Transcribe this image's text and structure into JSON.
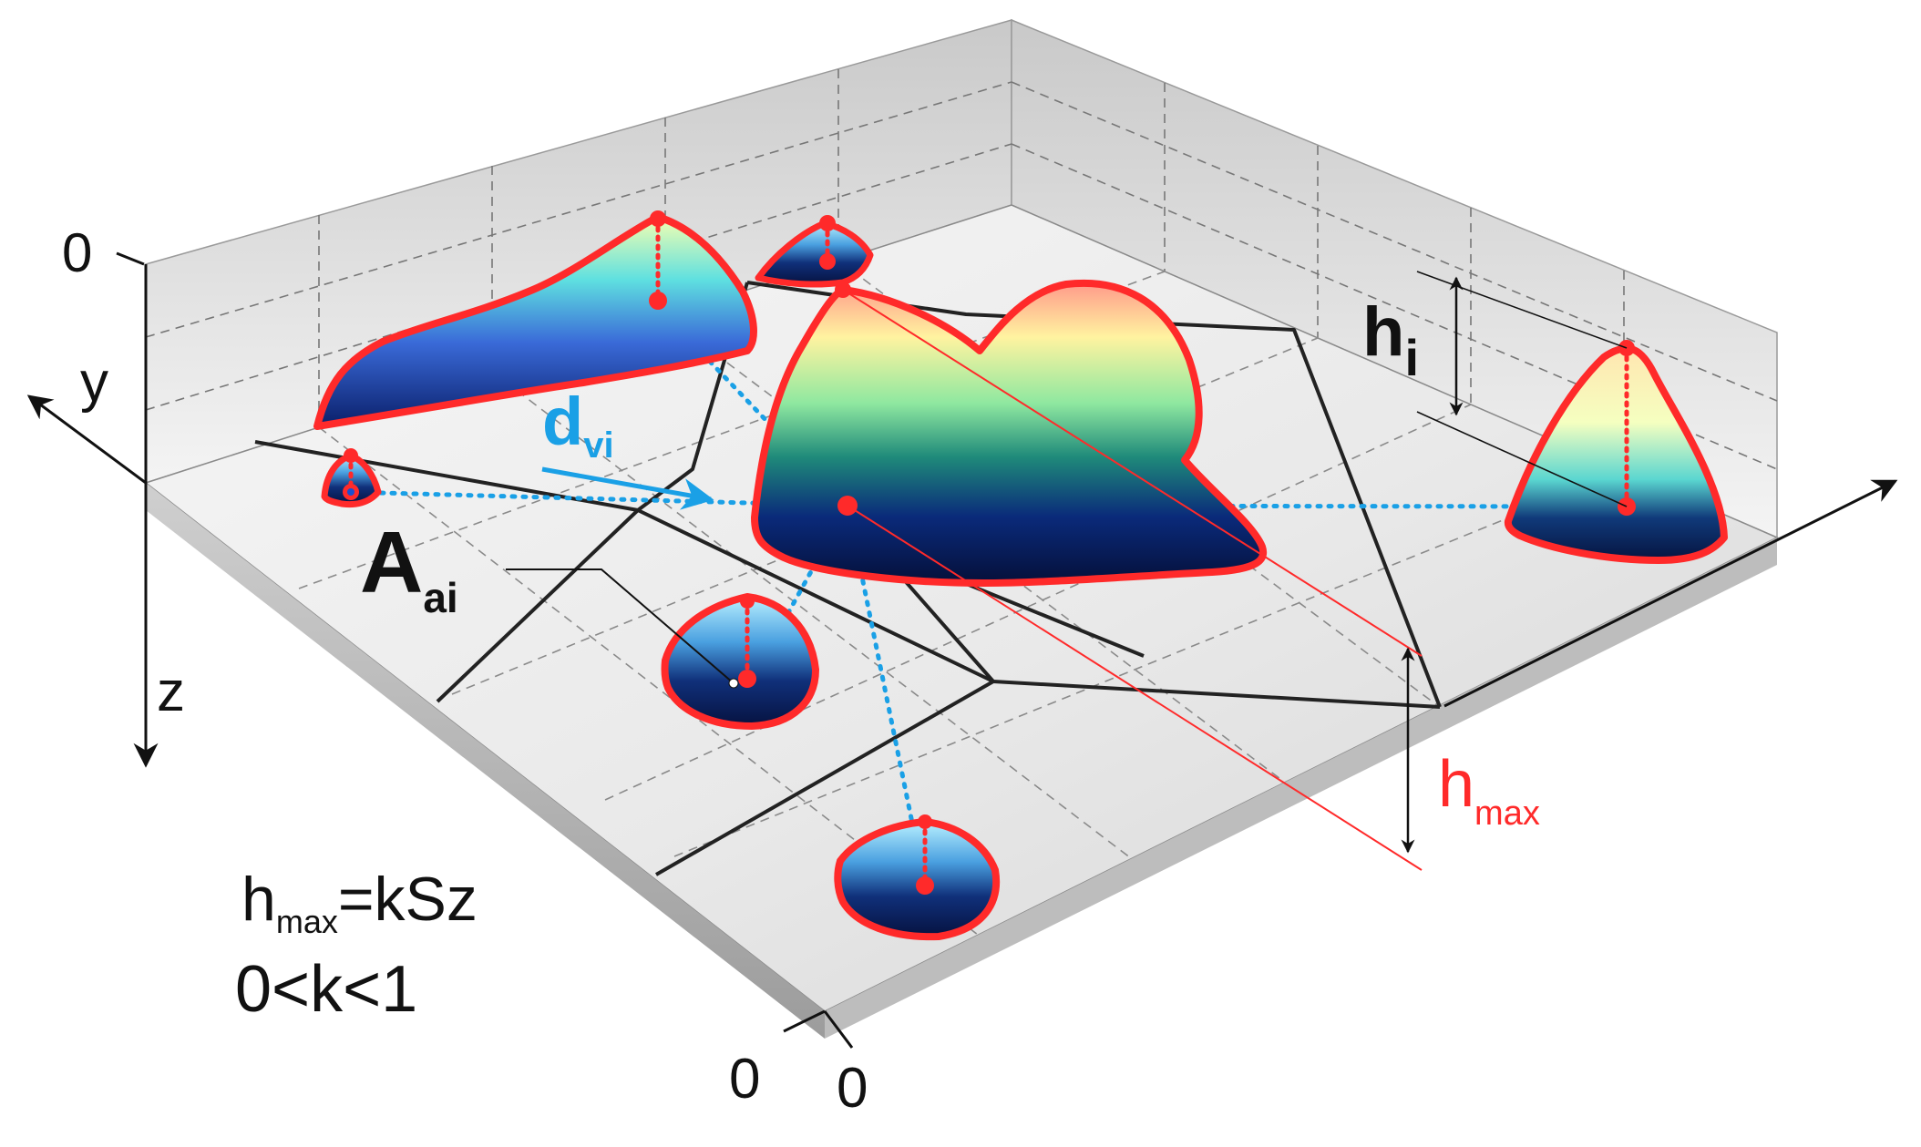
{
  "axes": {
    "y": "y",
    "z": "z",
    "origin_top": "0",
    "origin_front_a": "0",
    "origin_front_b": "0"
  },
  "labels": {
    "d_main": "d",
    "d_sub": "vi",
    "a_main": "A",
    "a_sub": "ai",
    "hi_main": "h",
    "hi_sub": "i",
    "hmax_main": "h",
    "hmax_sub": "max"
  },
  "formula": {
    "line1_main": "h",
    "line1_sub": "max",
    "line1_rest": "=kSz",
    "line2": "0<k<1"
  },
  "colors": {
    "outline": "#ff2a2a",
    "distance": "#1aa0e6",
    "cell_edge": "#222222",
    "hmax_text": "#ff2a2a",
    "d_text": "#1aa0e6"
  }
}
